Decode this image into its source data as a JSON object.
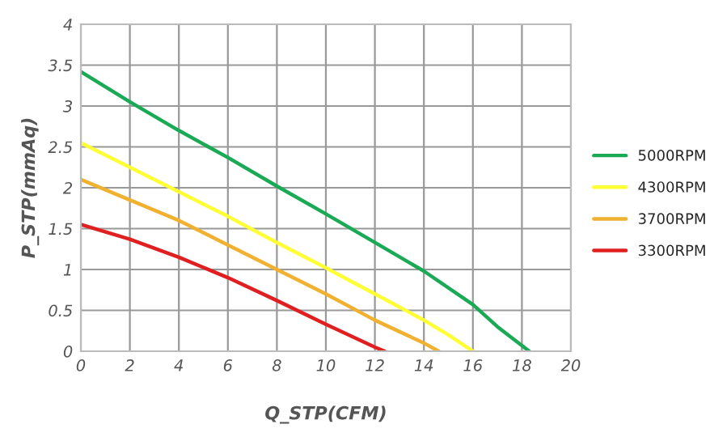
{
  "chart_data": {
    "type": "line",
    "xlabel": "Q_STP(CFM)",
    "ylabel": "P_STP(mmAq)",
    "xlim": [
      0,
      20
    ],
    "ylim": [
      0,
      4
    ],
    "xticks": [
      0,
      2,
      4,
      6,
      8,
      10,
      12,
      14,
      16,
      18,
      20
    ],
    "yticks": [
      0,
      0.5,
      1,
      1.5,
      2,
      2.5,
      3,
      3.5,
      4
    ],
    "grid": true,
    "legend": "right",
    "marker": "none",
    "series": [
      {
        "name": "5000RPM",
        "color": "#1aaa55",
        "x": [
          0,
          2,
          4,
          6,
          8,
          10,
          12,
          14,
          16,
          17,
          18.3
        ],
        "values": [
          3.42,
          3.05,
          2.7,
          2.37,
          2.02,
          1.68,
          1.33,
          0.98,
          0.57,
          0.3,
          0
        ]
      },
      {
        "name": "4300RPM",
        "color": "#ffff33",
        "x": [
          0,
          2,
          4,
          6,
          8,
          10,
          12,
          14,
          15,
          16
        ],
        "values": [
          2.55,
          2.25,
          1.95,
          1.65,
          1.33,
          1.02,
          0.7,
          0.38,
          0.2,
          0
        ]
      },
      {
        "name": "3700RPM",
        "color": "#f0b030",
        "x": [
          0,
          2,
          4,
          6,
          8,
          10,
          12,
          14,
          14.6
        ],
        "values": [
          2.1,
          1.85,
          1.6,
          1.3,
          1.0,
          0.7,
          0.38,
          0.1,
          0
        ]
      },
      {
        "name": "3300RPM",
        "color": "#e02020",
        "x": [
          0,
          2,
          4,
          6,
          8,
          10,
          12,
          12.4
        ],
        "values": [
          1.55,
          1.37,
          1.15,
          0.9,
          0.62,
          0.33,
          0.05,
          0
        ]
      }
    ]
  }
}
